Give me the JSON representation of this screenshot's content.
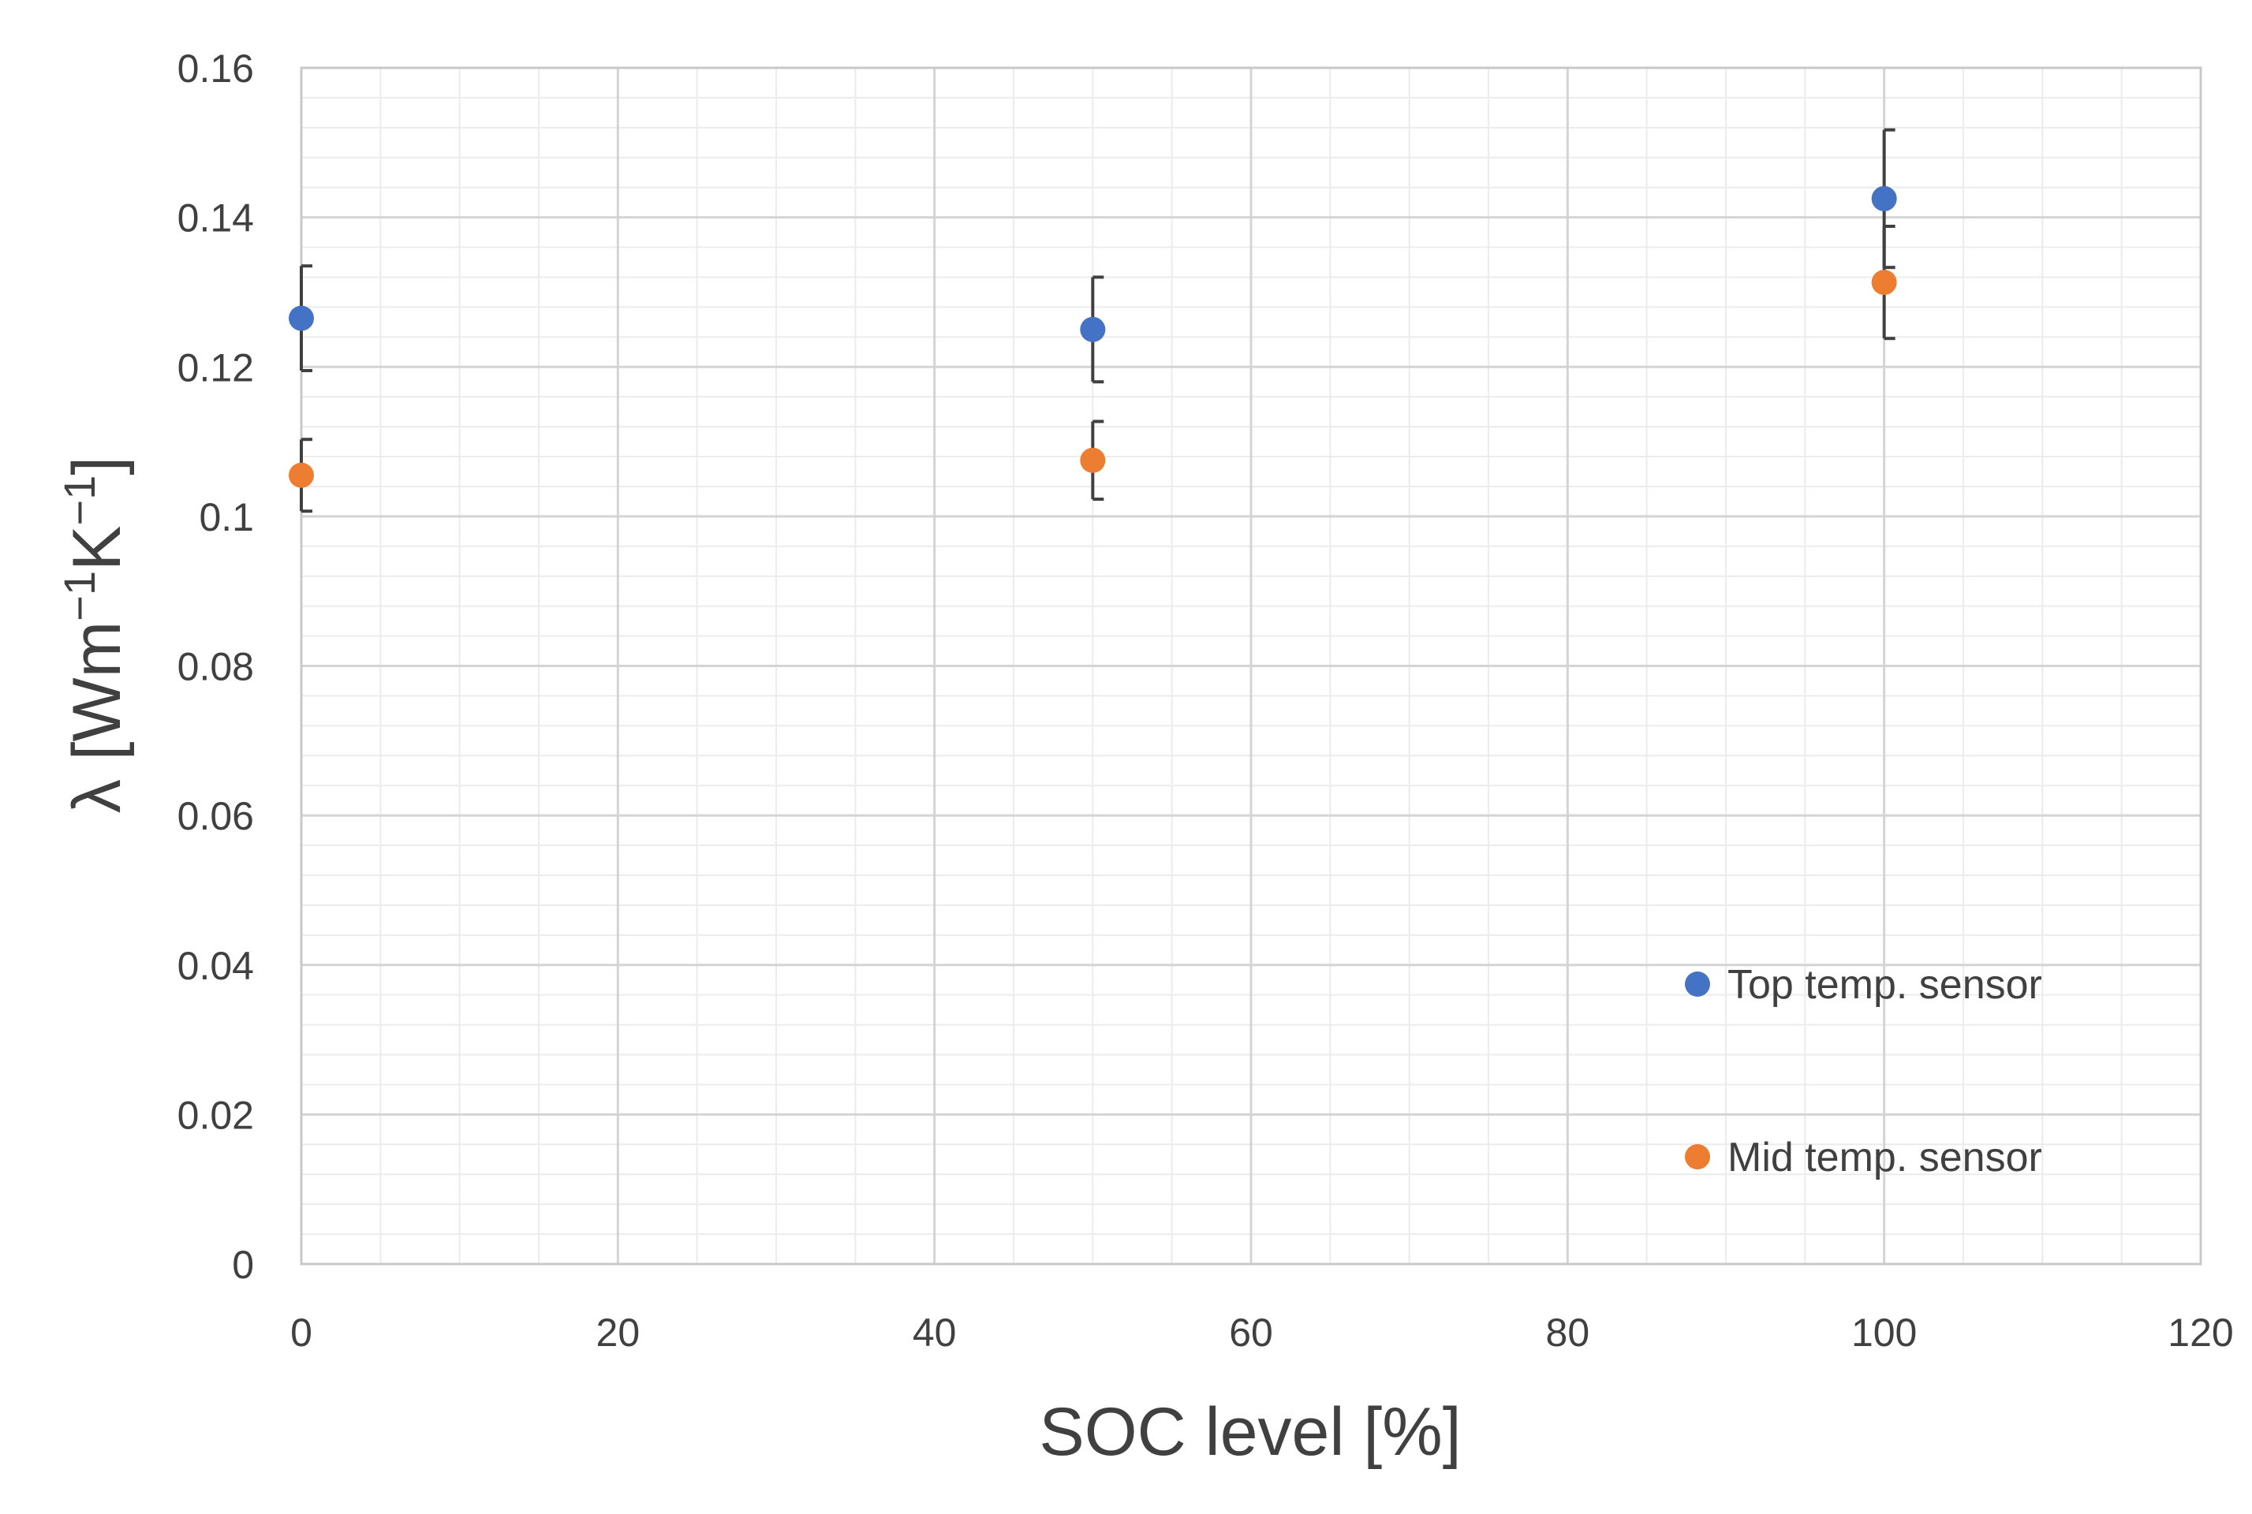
{
  "chart_data": {
    "type": "scatter",
    "title": "",
    "xlabel": "SOC level [%]",
    "ylabel": "λ [Wm",
    "ylabel_sup1": "−1",
    "ylabel_mid": "K",
    "ylabel_sup2": "−1",
    "ylabel_end": "]",
    "xlim": [
      0,
      120
    ],
    "ylim": [
      0,
      0.16
    ],
    "x_ticks": [
      0,
      20,
      40,
      60,
      80,
      100,
      120
    ],
    "x_tick_labels": [
      "0",
      "20",
      "40",
      "60",
      "80",
      "100",
      "120"
    ],
    "y_ticks": [
      0,
      0.02,
      0.04,
      0.06,
      0.08,
      0.1,
      0.12,
      0.14,
      0.16
    ],
    "y_tick_labels": [
      "0",
      "0.02",
      "0.04",
      "0.06",
      "0.08",
      "0.1",
      "0.12",
      "0.14",
      "0.16"
    ],
    "x_minor_step": 5,
    "y_minor_step": 0.004,
    "grid": true,
    "legend_position": "bottom-right",
    "series": [
      {
        "name": "Top temp. sensor",
        "color": "#4472C4",
        "x": [
          0,
          50,
          100
        ],
        "y": [
          0.1265,
          0.125,
          0.1425
        ],
        "err": [
          0.007,
          0.007,
          0.0092
        ]
      },
      {
        "name": "Mid temp. sensor",
        "color": "#ED7D31",
        "x": [
          0,
          50,
          100
        ],
        "y": [
          0.1055,
          0.1075,
          0.1313
        ],
        "err": [
          0.0048,
          0.0052,
          0.0075
        ]
      }
    ]
  }
}
